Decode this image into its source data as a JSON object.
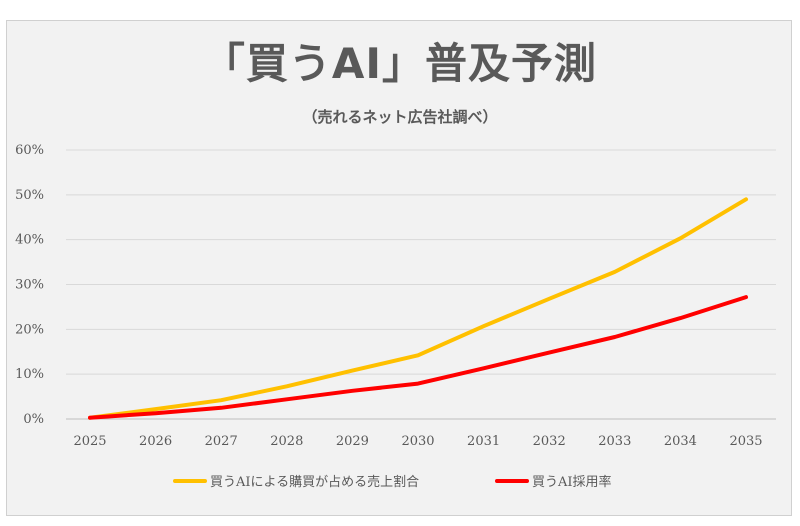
{
  "chart_data": {
    "type": "line",
    "title": "「買うAI」普及予測",
    "subtitle": "（売れるネット広告社調べ）",
    "categories": [
      "2025",
      "2026",
      "2027",
      "2028",
      "2029",
      "2030",
      "2031",
      "2032",
      "2033",
      "2034",
      "2035"
    ],
    "ylim": [
      0,
      60
    ],
    "yticks": [
      0,
      10,
      20,
      30,
      40,
      50,
      60
    ],
    "ytick_labels": [
      "0%",
      "10%",
      "20%",
      "30%",
      "40%",
      "50%",
      "60%"
    ],
    "grid": true,
    "legend_position": "bottom",
    "series": [
      {
        "name": "買うAIによる購買が占める売上割合",
        "color": "#FFC000",
        "values": [
          0.3,
          2.2,
          4.2,
          7.3,
          10.8,
          14.2,
          20.7,
          26.8,
          32.8,
          40.3,
          49.0
        ]
      },
      {
        "name": "買うAI採用率",
        "color": "#FF0000",
        "values": [
          0.3,
          1.3,
          2.5,
          4.4,
          6.3,
          7.9,
          11.3,
          14.8,
          18.3,
          22.5,
          27.2
        ]
      }
    ]
  }
}
